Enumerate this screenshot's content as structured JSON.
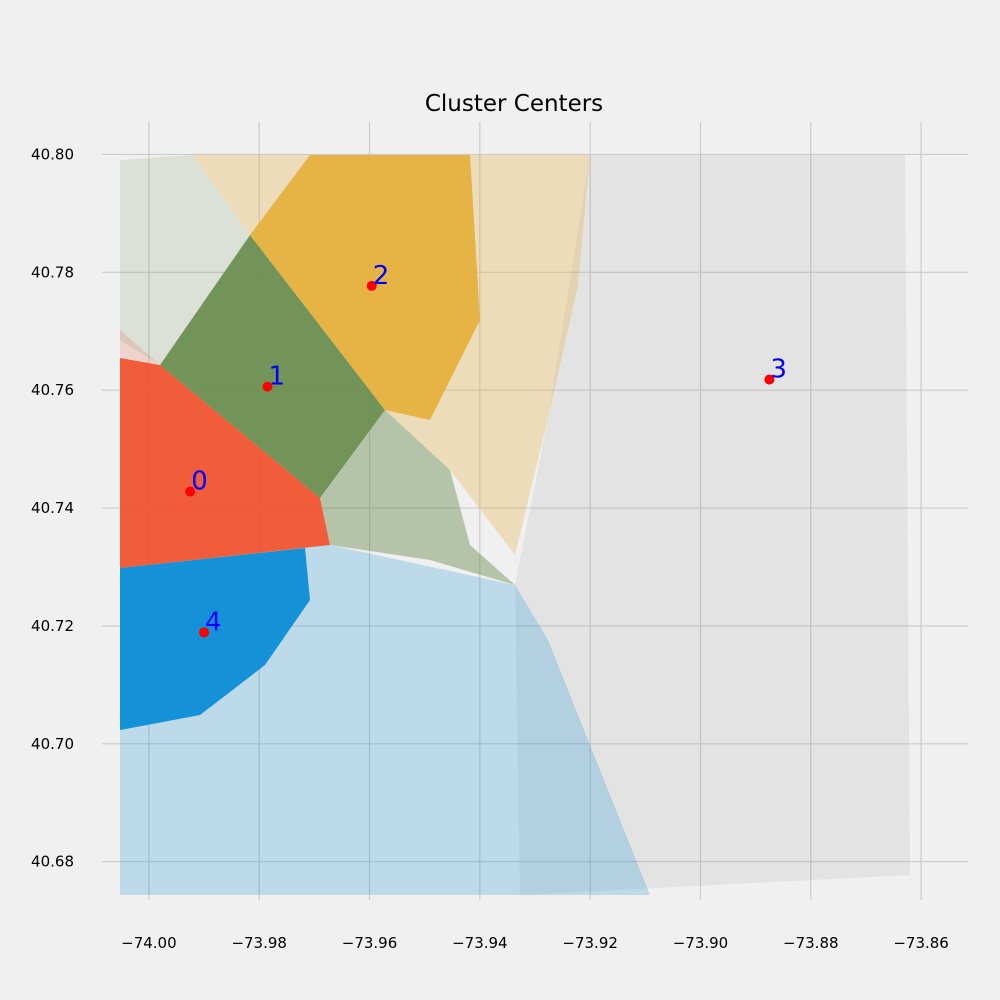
{
  "chart_data": {
    "type": "scatter",
    "title": "Cluster Centers",
    "xlabel": "",
    "ylabel": "",
    "xlim": [
      -74.0085,
      -73.8515
    ],
    "ylim": [
      40.6735,
      40.8055
    ],
    "grid": true,
    "x_ticks": [
      -74.0,
      -73.98,
      -73.96,
      -73.94,
      -73.92,
      -73.9,
      -73.88,
      -73.86
    ],
    "x_tick_labels": [
      "−74.00",
      "−73.98",
      "−73.96",
      "−73.94",
      "−73.92",
      "−73.90",
      "−73.88",
      "−73.86"
    ],
    "y_ticks": [
      40.68,
      40.7,
      40.72,
      40.74,
      40.76,
      40.78,
      40.8
    ],
    "y_tick_labels": [
      "40.68",
      "40.70",
      "40.72",
      "40.74",
      "40.76",
      "40.78",
      "40.80"
    ],
    "clusters": [
      {
        "label": "0",
        "center": [
          -73.9925,
          40.7428
        ],
        "color": "#f05330"
      },
      {
        "label": "1",
        "center": [
          -73.9785,
          40.7606
        ],
        "color": "#6c8e50"
      },
      {
        "label": "2",
        "center": [
          -73.9596,
          40.7777
        ],
        "color": "#e6b03e"
      },
      {
        "label": "3",
        "center": [
          -73.8875,
          40.7618
        ],
        "color": "#8c8c8c"
      },
      {
        "label": "4",
        "center": [
          -73.99,
          40.7189
        ],
        "color": "#0b8dd6"
      }
    ],
    "center_marker_color": "#ff0000",
    "center_label_color": "#0000ff"
  }
}
